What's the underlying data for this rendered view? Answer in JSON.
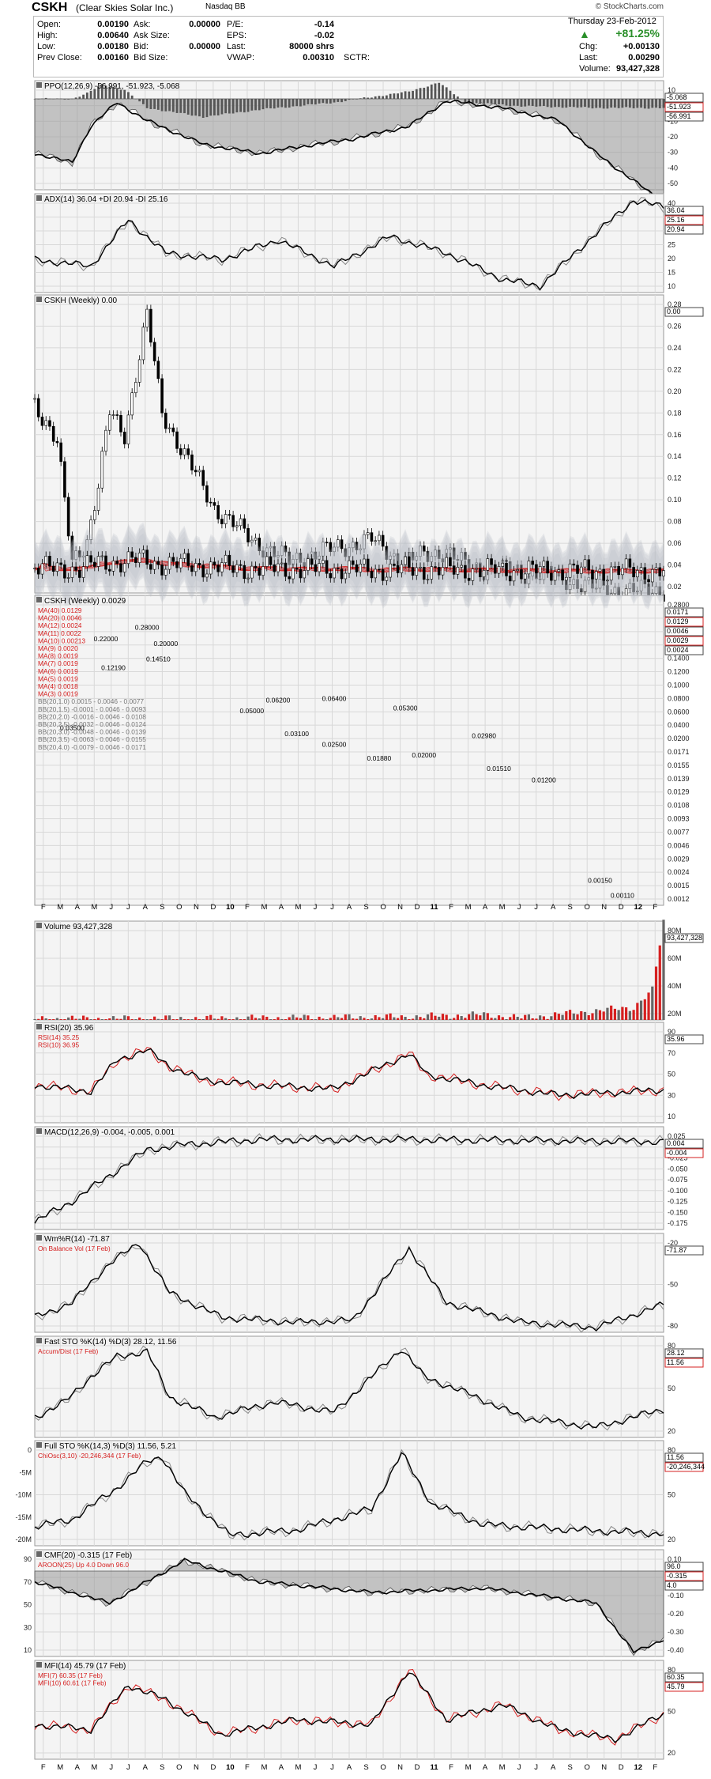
{
  "header": {
    "symbol": "CSKH",
    "name": "(Clear Skies Solar Inc.)",
    "exchange": "Nasdaq BB",
    "credit": "© StockCharts.com",
    "date": "Thursday  23-Feb-2012",
    "change_pct": "+81.25%",
    "rows": [
      {
        "l1": "Open:",
        "v1": "0.00190",
        "l2": "Ask:",
        "v2": "0.00000",
        "l3": "P/E:",
        "v3": "-0.14"
      },
      {
        "l1": "High:",
        "v1": "0.00640",
        "l2": "Ask Size:",
        "v2": "",
        "l3": "EPS:",
        "v3": "-0.02"
      },
      {
        "l1": "Low:",
        "v1": "0.00180",
        "l2": "Bid:",
        "v2": "0.00000",
        "l3": "Last:",
        "v3": "80000 shrs"
      },
      {
        "l1": "Prev Close:",
        "v1": "0.00160",
        "l2": "Bid Size:",
        "v2": "",
        "l3": "VWAP:",
        "v3": "0.00310"
      }
    ],
    "sctr_label": "SCTR:",
    "right_rows": [
      {
        "l": "Chg:",
        "v": "+0.00130"
      },
      {
        "l": "Last:",
        "v": "0.00290"
      },
      {
        "l": "Volume:",
        "v": "93,427,328"
      }
    ]
  },
  "months": [
    "F",
    "M",
    "A",
    "M",
    "J",
    "J",
    "A",
    "S",
    "O",
    "N",
    "D",
    "10",
    "F",
    "M",
    "A",
    "M",
    "J",
    "J",
    "A",
    "S",
    "O",
    "N",
    "D",
    "11",
    "F",
    "M",
    "A",
    "M",
    "J",
    "J",
    "A",
    "S",
    "O",
    "N",
    "D",
    "12",
    "F"
  ],
  "colors": {
    "grid": "#d8d8d8",
    "bg": "#f4f4f4",
    "red": "#d62020",
    "dark": "#000000",
    "gray": "#888888",
    "band": "#b8bcc6"
  },
  "chart_data": [
    {
      "type": "area",
      "title": "PPO(12,26,9) -56.991, -51.923, -5.068",
      "ylim": [
        -50,
        10
      ],
      "ticks": [
        "10",
        "0",
        "-10",
        "-20",
        "-30",
        "-40",
        "-50"
      ],
      "markers": [
        "-5.068",
        "-51.923",
        "-56.991"
      ],
      "keys": [
        [
          0,
          -30
        ],
        [
          10,
          -35
        ],
        [
          15,
          -15
        ],
        [
          22,
          -2
        ],
        [
          30,
          -12
        ],
        [
          45,
          -25
        ],
        [
          60,
          -30
        ],
        [
          75,
          -25
        ],
        [
          85,
          -22
        ],
        [
          100,
          -15
        ],
        [
          110,
          -1
        ],
        [
          125,
          -5
        ],
        [
          140,
          -12
        ],
        [
          150,
          -30
        ],
        [
          160,
          -45
        ],
        [
          168,
          -57
        ]
      ],
      "hist": [
        [
          0,
          0
        ],
        [
          10,
          0
        ],
        [
          14,
          3
        ],
        [
          18,
          8
        ],
        [
          24,
          5
        ],
        [
          30,
          -5
        ],
        [
          45,
          -10
        ],
        [
          60,
          -6
        ],
        [
          80,
          -2
        ],
        [
          100,
          4
        ],
        [
          108,
          9
        ],
        [
          115,
          -2
        ],
        [
          130,
          -4
        ],
        [
          150,
          -5
        ],
        [
          168,
          -5
        ]
      ]
    },
    {
      "type": "line",
      "title": "ADX(14) 36.04 +DI 20.94 -DI 25.16",
      "ylim": [
        10,
        40
      ],
      "ticks": [
        "40",
        "35",
        "30",
        "25",
        "20",
        "15",
        "10"
      ],
      "markers": [
        "36.04",
        "25.16",
        "20.94"
      ],
      "keys": [
        [
          0,
          20
        ],
        [
          15,
          18
        ],
        [
          25,
          32
        ],
        [
          35,
          22
        ],
        [
          50,
          20
        ],
        [
          65,
          26
        ],
        [
          80,
          18
        ],
        [
          95,
          27
        ],
        [
          110,
          22
        ],
        [
          125,
          14
        ],
        [
          135,
          12
        ],
        [
          150,
          28
        ],
        [
          160,
          38
        ],
        [
          168,
          36
        ]
      ]
    },
    {
      "type": "candlestick",
      "title": "CSKH (Weekly) 0.00",
      "ylim": [
        0,
        0.28
      ],
      "ticks": [
        "0.28",
        "0.26",
        "0.24",
        "0.22",
        "0.20",
        "0.18",
        "0.16",
        "0.14",
        "0.12",
        "0.10",
        "0.08",
        "0.06",
        "0.04",
        "0.02"
      ],
      "markers": [
        "0.00"
      ],
      "keys": [
        [
          0,
          0.18
        ],
        [
          6,
          0.14
        ],
        [
          10,
          0.03
        ],
        [
          14,
          0.05
        ],
        [
          17,
          0.1
        ],
        [
          20,
          0.17
        ],
        [
          24,
          0.15
        ],
        [
          30,
          0.26
        ],
        [
          34,
          0.17
        ],
        [
          40,
          0.13
        ],
        [
          48,
          0.08
        ],
        [
          58,
          0.05
        ],
        [
          68,
          0.03
        ],
        [
          78,
          0.04
        ],
        [
          90,
          0.05
        ],
        [
          98,
          0.03
        ],
        [
          110,
          0.04
        ],
        [
          115,
          0.025
        ],
        [
          130,
          0.02
        ],
        [
          140,
          0.015
        ],
        [
          150,
          0.004
        ],
        [
          160,
          0.002
        ],
        [
          168,
          0.003
        ]
      ]
    },
    {
      "type": "candlestick",
      "title": "CSKH (Weekly) 0.0029",
      "ylim": [
        -6.9,
        -0.5
      ],
      "ticks": [
        "0.2800",
        "0.2400",
        "0.2000",
        "0.1600",
        "0.1400",
        "0.1200",
        "0.1000",
        "0.0800",
        "0.0600",
        "0.0400",
        "0.0200",
        "0.0171",
        "0.0155",
        "0.0139",
        "0.0129",
        "0.0108",
        "0.0093",
        "0.0077",
        "0.0046",
        "0.0029",
        "0.0024",
        "0.0015",
        "0.0012"
      ],
      "markers": [
        "0.0171",
        "0.0129",
        "0.0046",
        "0.0029",
        "0.0024"
      ],
      "legend_left": [
        "MA(40) 0.0129",
        "MA(20) 0.0046",
        "MA(12) 0.0024",
        "MA(11) 0.0022",
        "MA(10) 0.00213",
        "MA(9) 0.0020",
        "MA(8) 0.0019",
        "MA(7) 0.0019",
        "MA(6) 0.0019",
        "MA(5) 0.0019",
        "MA(4) 0.0018",
        "MA(3) 0.0019",
        "BB(20,1.0) 0.0015 - 0.0046 - 0.0077",
        "BB(20,1.5) -0.0001 - 0.0046 - 0.0093",
        "BB(20,2.0) -0.0016 - 0.0046 - 0.0108",
        "BB(20,2.5) -0.0032 - 0.0046 - 0.0124",
        "BB(20,3.0) -0.0048 - 0.0046 - 0.0139",
        "BB(20,3.5) -0.0063 - 0.0046 - 0.0155",
        "BB(20,4.0) -0.0079 - 0.0046 - 0.0171"
      ],
      "annotations": [
        {
          "label": "0.28000",
          "x": 30,
          "y": 0.28
        },
        {
          "label": "0.22000",
          "x": 19,
          "y": 0.22
        },
        {
          "label": "0.20000",
          "x": 35,
          "y": 0.2
        },
        {
          "label": "0.14510",
          "x": 33,
          "y": 0.1451
        },
        {
          "label": "0.12190",
          "x": 21,
          "y": 0.1219
        },
        {
          "label": "0.03500",
          "x": 10,
          "y": 0.035
        },
        {
          "label": "0.06200",
          "x": 65,
          "y": 0.062
        },
        {
          "label": "0.06400",
          "x": 80,
          "y": 0.064
        },
        {
          "label": "0.05000",
          "x": 58,
          "y": 0.05
        },
        {
          "label": "0.05300",
          "x": 99,
          "y": 0.053
        },
        {
          "label": "0.03100",
          "x": 70,
          "y": 0.031
        },
        {
          "label": "0.02500",
          "x": 80,
          "y": 0.025
        },
        {
          "label": "0.01880",
          "x": 92,
          "y": 0.0188
        },
        {
          "label": "0.02000",
          "x": 104,
          "y": 0.02
        },
        {
          "label": "0.02980",
          "x": 120,
          "y": 0.0298
        },
        {
          "label": "0.01510",
          "x": 124,
          "y": 0.0151
        },
        {
          "label": "0.01200",
          "x": 136,
          "y": 0.012
        },
        {
          "label": "0.00150",
          "x": 151,
          "y": 0.0015
        },
        {
          "label": "0.00110",
          "x": 157,
          "y": 0.0011
        }
      ],
      "keys": [
        [
          0,
          0.07
        ],
        [
          8,
          0.05
        ],
        [
          12,
          0.04
        ],
        [
          17,
          0.17
        ],
        [
          23,
          0.19
        ],
        [
          29,
          0.24
        ],
        [
          33,
          0.15
        ],
        [
          40,
          0.13
        ],
        [
          48,
          0.09
        ],
        [
          56,
          0.05
        ],
        [
          64,
          0.055
        ],
        [
          72,
          0.035
        ],
        [
          80,
          0.055
        ],
        [
          88,
          0.03
        ],
        [
          93,
          0.021
        ],
        [
          99,
          0.048
        ],
        [
          106,
          0.028
        ],
        [
          115,
          0.025
        ],
        [
          122,
          0.02
        ],
        [
          130,
          0.013
        ],
        [
          138,
          0.008
        ],
        [
          145,
          0.004
        ],
        [
          152,
          0.0018
        ],
        [
          158,
          0.0013
        ],
        [
          162,
          0.0018
        ],
        [
          168,
          0.0029
        ]
      ]
    },
    {
      "type": "bar",
      "title": "Volume 93,427,328",
      "ylim": [
        0,
        93.4
      ],
      "unit": "M",
      "ticks": [
        "80M",
        "60M",
        "40M",
        "20M"
      ],
      "markers": [
        "93,427,328"
      ],
      "keys": [
        [
          0,
          1
        ],
        [
          50,
          1.5
        ],
        [
          100,
          3
        ],
        [
          120,
          5
        ],
        [
          130,
          2
        ],
        [
          160,
          12
        ],
        [
          165,
          28
        ],
        [
          168,
          93
        ]
      ]
    },
    {
      "type": "line",
      "title": "RSI(20) 35.96",
      "legend_left": [
        "RSI(14) 35.25",
        "RSI(10) 36.95"
      ],
      "ylim": [
        10,
        90
      ],
      "ticks": [
        "90",
        "70",
        "50",
        "30",
        "10"
      ],
      "markers": [
        "35.96"
      ],
      "keys": [
        [
          0,
          40
        ],
        [
          15,
          35
        ],
        [
          22,
          60
        ],
        [
          30,
          68
        ],
        [
          36,
          55
        ],
        [
          45,
          44
        ],
        [
          60,
          40
        ],
        [
          80,
          37
        ],
        [
          100,
          65
        ],
        [
          105,
          48
        ],
        [
          120,
          40
        ],
        [
          140,
          32
        ],
        [
          168,
          36
        ]
      ]
    },
    {
      "type": "line",
      "title": "MACD(12,26,9) -0.004, -0.005, 0.001",
      "ylim": [
        -0.175,
        0.025
      ],
      "ticks": [
        "0.025",
        "0.000",
        "-0.025",
        "-0.050",
        "-0.075",
        "-0.100",
        "-0.125",
        "-0.150",
        "-0.175"
      ],
      "markers": [
        "0.004",
        "-0.004"
      ],
      "keys": [
        [
          0,
          -0.16
        ],
        [
          10,
          -0.12
        ],
        [
          20,
          -0.07
        ],
        [
          30,
          -0.02
        ],
        [
          40,
          -0.01
        ],
        [
          60,
          0
        ],
        [
          100,
          0
        ],
        [
          168,
          -0.004
        ]
      ]
    },
    {
      "type": "line",
      "title": "Wm%R(14) -71.87",
      "legend_left": [
        "On Balance Vol (17 Feb)"
      ],
      "ylim": [
        -100,
        0
      ],
      "ticks": [
        "-20",
        "-50",
        "-80"
      ],
      "markers": [
        "-71.87"
      ],
      "keys": [
        [
          0,
          -85
        ],
        [
          10,
          -70
        ],
        [
          20,
          -30
        ],
        [
          28,
          -10
        ],
        [
          36,
          -60
        ],
        [
          50,
          -85
        ],
        [
          70,
          -90
        ],
        [
          85,
          -88
        ],
        [
          100,
          -15
        ],
        [
          110,
          -70
        ],
        [
          130,
          -90
        ],
        [
          150,
          -95
        ],
        [
          168,
          -72
        ]
      ]
    },
    {
      "type": "line",
      "title": "Fast STO %K(14) %D(3) 28.12, 11.56",
      "legend_left": [
        "Accum/Dist (17 Feb)"
      ],
      "ylim": [
        0,
        100
      ],
      "ticks": [
        "80",
        "50",
        "20"
      ],
      "markers": [
        "28.12",
        "11.56"
      ],
      "keys": [
        [
          0,
          20
        ],
        [
          8,
          35
        ],
        [
          15,
          60
        ],
        [
          22,
          80
        ],
        [
          30,
          85
        ],
        [
          36,
          40
        ],
        [
          48,
          20
        ],
        [
          64,
          35
        ],
        [
          80,
          25
        ],
        [
          98,
          88
        ],
        [
          104,
          60
        ],
        [
          118,
          40
        ],
        [
          130,
          20
        ],
        [
          150,
          10
        ],
        [
          168,
          28
        ]
      ]
    },
    {
      "type": "line",
      "title": "Full STO %K(14,3) %D(3) 11.56, 5.21",
      "legend_left": [
        "ChiOsc(3,10) -20,246,344 (17 Feb)"
      ],
      "ylim": [
        0,
        100
      ],
      "ticks": [
        "80",
        "50",
        "20"
      ],
      "markers": [
        "11.56",
        "-20,246,344"
      ],
      "left_ticks": [
        "0",
        "-5M",
        "-10M",
        "-15M",
        "-20M"
      ],
      "keys": [
        [
          0,
          18
        ],
        [
          10,
          25
        ],
        [
          22,
          55
        ],
        [
          30,
          80
        ],
        [
          34,
          85
        ],
        [
          40,
          50
        ],
        [
          52,
          10
        ],
        [
          70,
          15
        ],
        [
          90,
          35
        ],
        [
          98,
          88
        ],
        [
          106,
          40
        ],
        [
          120,
          20
        ],
        [
          145,
          15
        ],
        [
          168,
          11.56
        ]
      ]
    },
    {
      "type": "area",
      "title": "CMF(20) -0.315 (17 Feb)",
      "legend_left": [
        "AROON(25) Up 4.0 Down 96.0"
      ],
      "ylim": [
        -0.4,
        0.1
      ],
      "ticks": [
        "0.10",
        "0.00",
        "-0.10",
        "-0.20",
        "-0.30",
        "-0.40"
      ],
      "left_ticks": [
        "90",
        "70",
        "50",
        "30",
        "10"
      ],
      "markers": [
        "96.0",
        "-0.315",
        "4.0"
      ],
      "keys": [
        [
          0,
          -0.05
        ],
        [
          20,
          -0.15
        ],
        [
          40,
          0.05
        ],
        [
          60,
          -0.05
        ],
        [
          90,
          -0.1
        ],
        [
          120,
          -0.08
        ],
        [
          150,
          -0.15
        ],
        [
          160,
          -0.38
        ],
        [
          168,
          -0.32
        ]
      ]
    },
    {
      "type": "line",
      "title": "MFI(14) 45.79 (17 Feb)",
      "legend_left": [
        "MFI(7) 60.35 (17 Feb)",
        "MFI(10) 60.61 (17 Feb)"
      ],
      "ylim": [
        0,
        100
      ],
      "ticks": [
        "80",
        "50",
        "20"
      ],
      "markers": [
        "60.35",
        "45.79"
      ],
      "keys": [
        [
          0,
          35
        ],
        [
          15,
          30
        ],
        [
          25,
          75
        ],
        [
          35,
          60
        ],
        [
          50,
          25
        ],
        [
          70,
          40
        ],
        [
          90,
          35
        ],
        [
          100,
          90
        ],
        [
          110,
          40
        ],
        [
          125,
          55
        ],
        [
          140,
          30
        ],
        [
          155,
          20
        ],
        [
          168,
          46
        ]
      ]
    }
  ]
}
